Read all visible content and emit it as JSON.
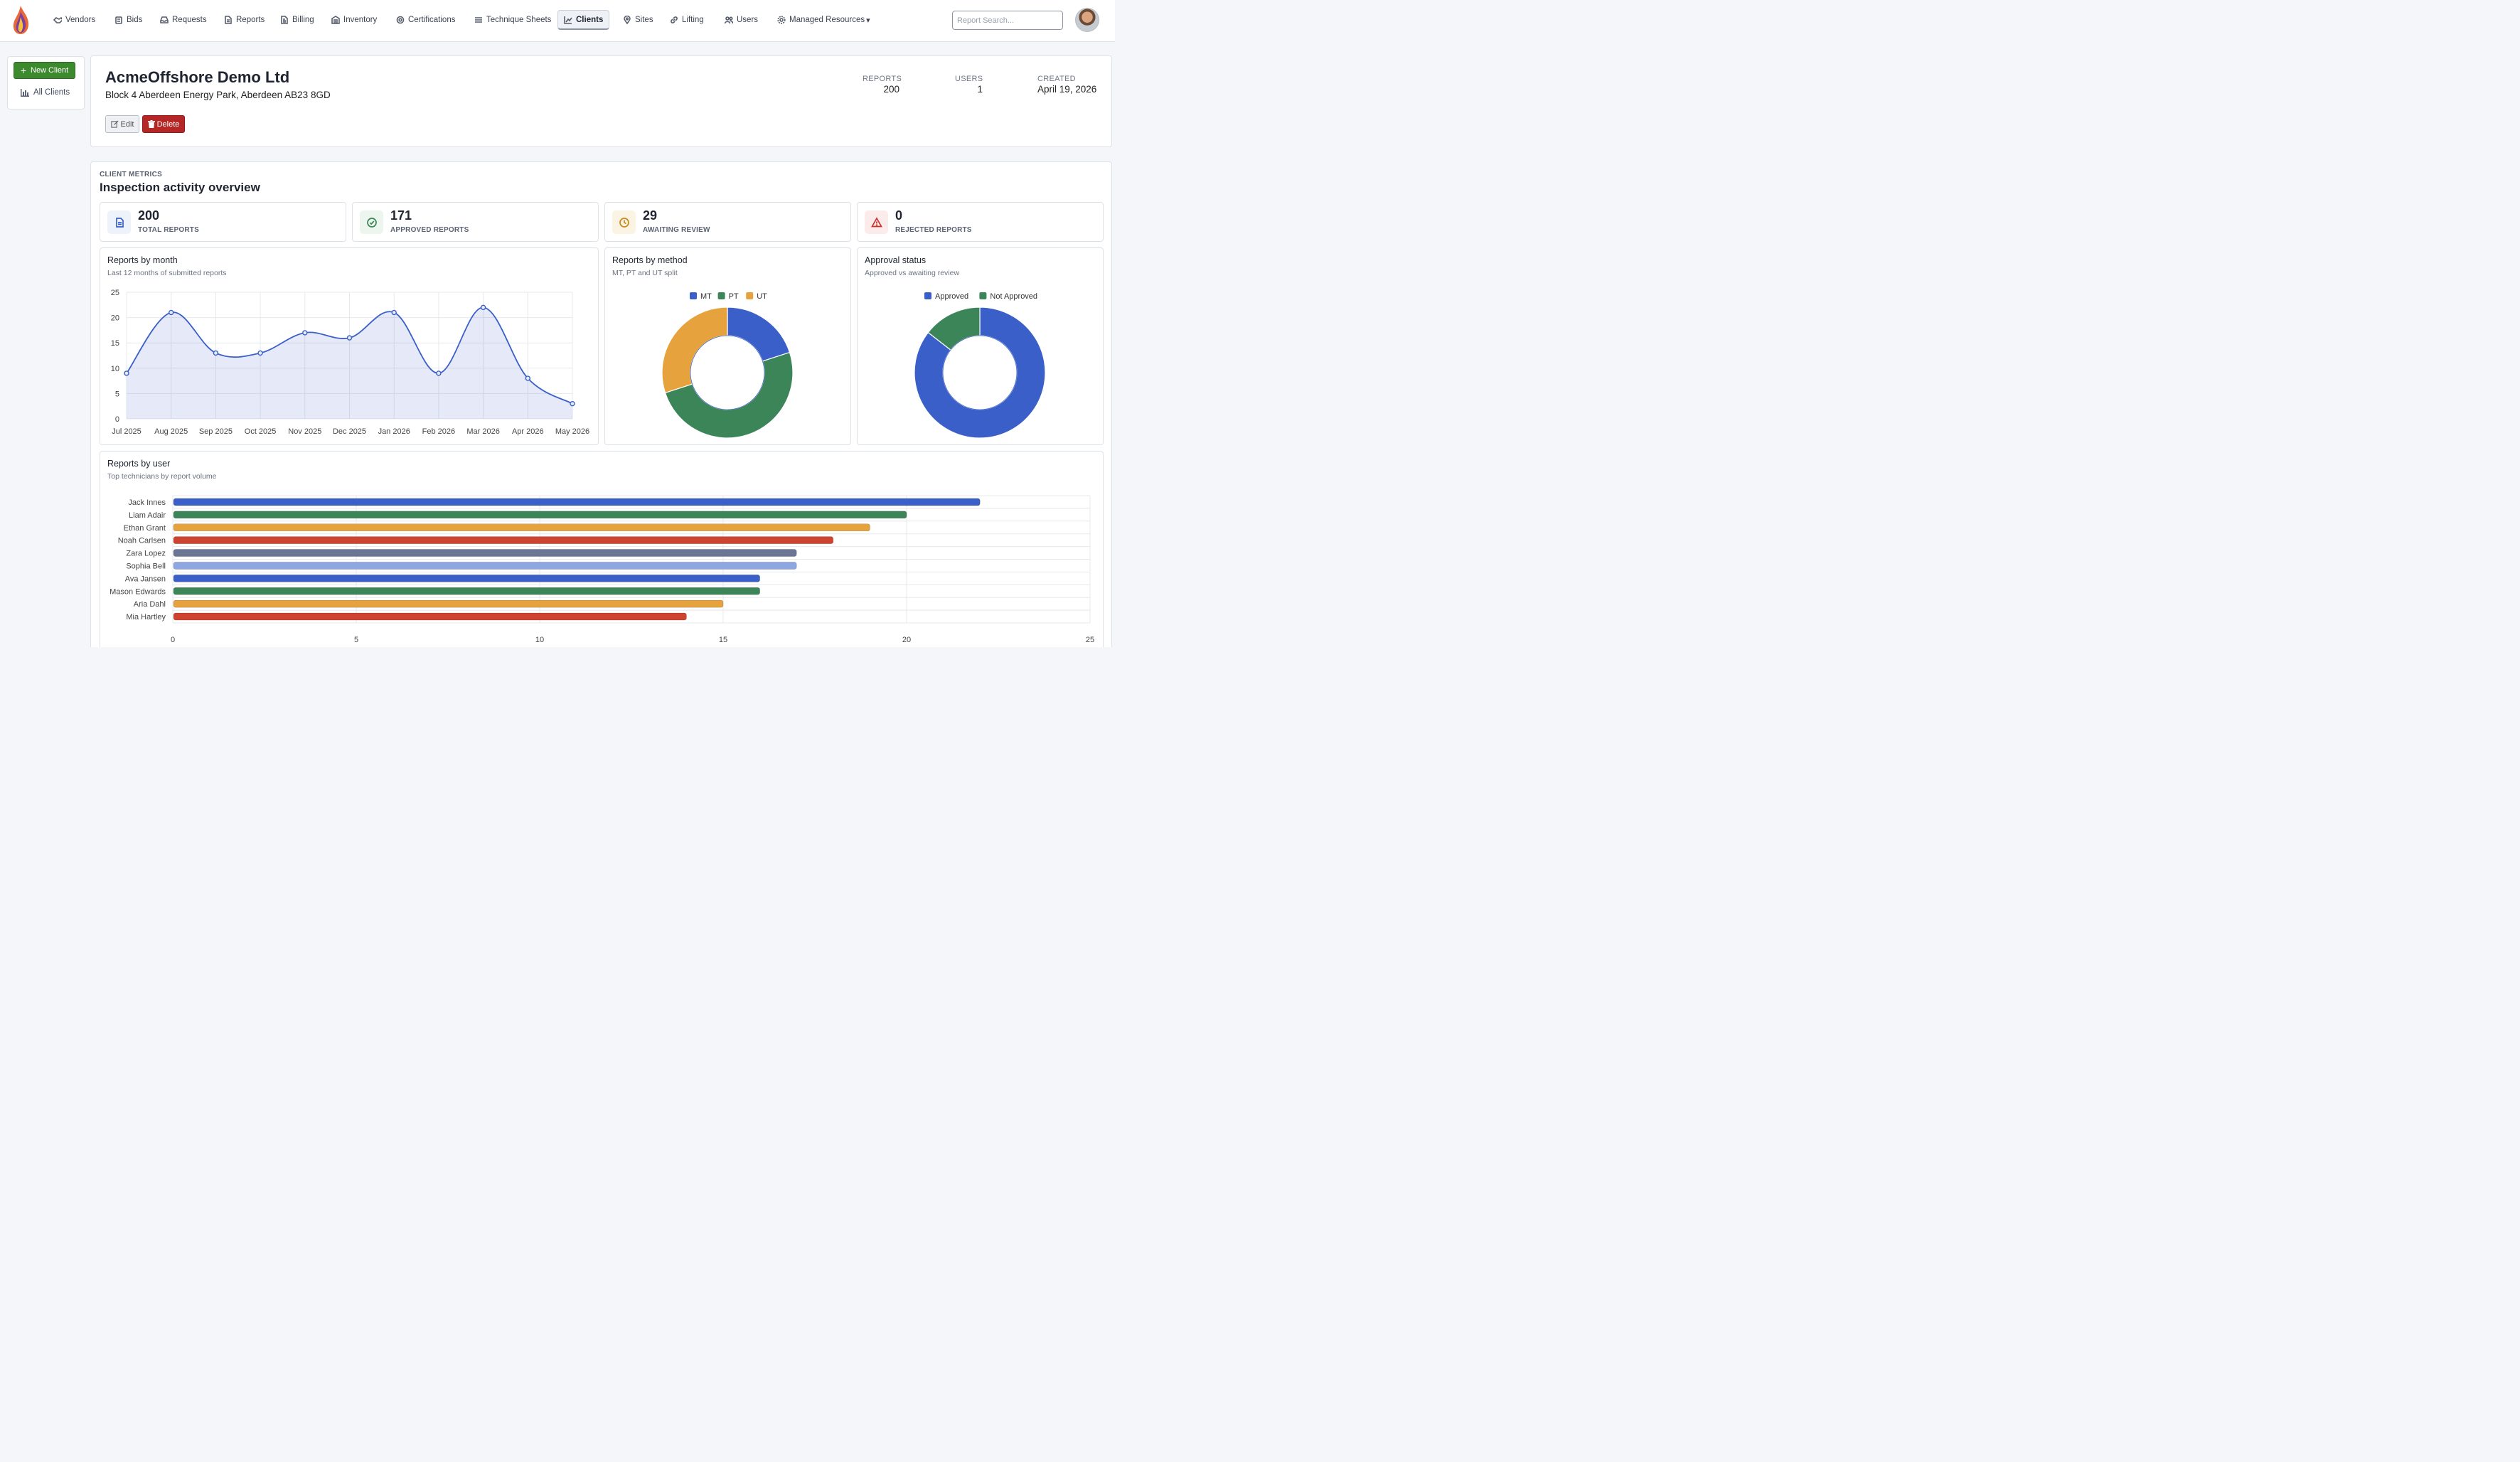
{
  "nav": {
    "items": [
      {
        "label": "Vendors",
        "icon": "handshake-icon"
      },
      {
        "label": "Bids",
        "icon": "gavel-icon"
      },
      {
        "label": "Requests",
        "icon": "inbox-icon"
      },
      {
        "label": "Reports",
        "icon": "file-icon"
      },
      {
        "label": "Billing",
        "icon": "invoice-icon"
      },
      {
        "label": "Inventory",
        "icon": "warehouse-icon"
      },
      {
        "label": "Certifications",
        "icon": "certificate-icon"
      },
      {
        "label": "Technique Sheets",
        "icon": "list-icon"
      },
      {
        "label": "Clients",
        "icon": "chart-icon",
        "active": true
      },
      {
        "label": "Sites",
        "icon": "pin-icon"
      },
      {
        "label": "Lifting",
        "icon": "link-icon"
      },
      {
        "label": "Users",
        "icon": "users-icon"
      },
      {
        "label": "Managed Resources",
        "icon": "gear-icon"
      }
    ],
    "search_placeholder": "Report Search..."
  },
  "sidebar": {
    "new_client": "New Client",
    "all_clients": "All Clients"
  },
  "client": {
    "name": "AcmeOffshore Demo Ltd",
    "address": "Block 4 Aberdeen Energy Park, Aberdeen AB23 8GD",
    "edit": "Edit",
    "delete": "Delete",
    "stats": {
      "reports_label": "REPORTS",
      "reports": "200",
      "users_label": "USERS",
      "users": "1",
      "created_label": "CREATED",
      "created": "April 19, 2026"
    }
  },
  "metrics": {
    "kicker": "CLIENT METRICS",
    "title": "Inspection activity overview",
    "kpis": [
      {
        "value": "200",
        "label": "TOTAL REPORTS",
        "icon": "document-icon",
        "color": "#3a5fc8",
        "bg": "#eef2fb"
      },
      {
        "value": "171",
        "label": "APPROVED REPORTS",
        "icon": "check-circle-icon",
        "color": "#3a8754",
        "bg": "#ecf6ef"
      },
      {
        "value": "29",
        "label": "AWAITING REVIEW",
        "icon": "clock-icon",
        "color": "#c98a1c",
        "bg": "#fbf3e4"
      },
      {
        "value": "0",
        "label": "REJECTED REPORTS",
        "icon": "warning-icon",
        "color": "#c9332d",
        "bg": "#fbeceb"
      }
    ]
  },
  "chart_data": [
    {
      "type": "line",
      "title": "Reports by month",
      "subtitle": "Last 12 months of submitted reports",
      "categories": [
        "Jul 2025",
        "Aug 2025",
        "Sep 2025",
        "Oct 2025",
        "Nov 2025",
        "Dec 2025",
        "Jan 2026",
        "Feb 2026",
        "Mar 2026",
        "Apr 2026",
        "May 2026"
      ],
      "values": [
        9,
        21,
        13,
        13,
        17,
        16,
        21,
        9,
        22,
        8,
        3
      ],
      "ylim": [
        0,
        25
      ],
      "yticks": [
        0,
        5,
        10,
        15,
        20,
        25
      ],
      "color": "#3a5fc8",
      "grid": true
    },
    {
      "type": "pie",
      "title": "Reports by method",
      "subtitle": "MT, PT and UT split",
      "legend_position": "top",
      "labels": [
        "MT",
        "PT",
        "UT"
      ],
      "values": [
        20,
        50,
        30
      ],
      "colors": [
        "#3a5fc8",
        "#3c8559",
        "#e6a23c"
      ]
    },
    {
      "type": "pie",
      "title": "Approval status",
      "subtitle": "Approved vs awaiting review",
      "legend_position": "top",
      "labels": [
        "Approved",
        "Not Approved"
      ],
      "values": [
        171,
        29
      ],
      "colors": [
        "#3a5fc8",
        "#3c8559"
      ]
    },
    {
      "type": "bar",
      "orientation": "horizontal",
      "title": "Reports by user",
      "subtitle": "Top technicians by report volume",
      "categories": [
        "Jack Innes",
        "Liam Adair",
        "Ethan Grant",
        "Noah Carlsen",
        "Zara Lopez",
        "Sophia Bell",
        "Ava Jansen",
        "Mason Edwards",
        "Aria Dahl",
        "Mia Hartley"
      ],
      "values": [
        22,
        20,
        19,
        18,
        17,
        17,
        16,
        16,
        15,
        14
      ],
      "colors": [
        "#3a5fc8",
        "#3c8559",
        "#e6a23c",
        "#cf4430",
        "#6b7594",
        "#8ea6e2",
        "#3a5fc8",
        "#3c8559",
        "#e6a23c",
        "#cf4430"
      ],
      "xlim": [
        0,
        25
      ],
      "xticks": [
        0,
        5,
        10,
        15,
        20,
        25
      ],
      "grid": true
    }
  ]
}
